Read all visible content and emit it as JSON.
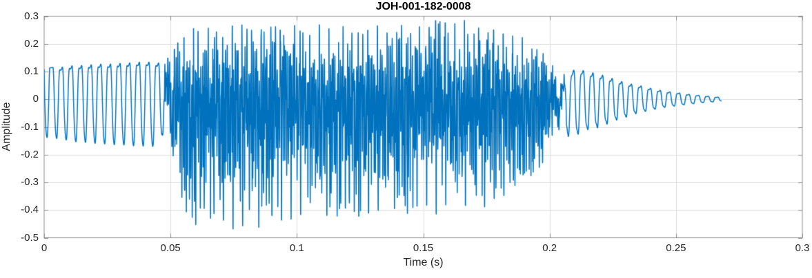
{
  "chart_data": {
    "type": "line",
    "title": "JOH-001-182-0008",
    "xlabel": "Time (s)",
    "ylabel": "Amplitude",
    "xlim": [
      0,
      0.3
    ],
    "ylim": [
      -0.5,
      0.3
    ],
    "xticks": [
      0,
      0.05,
      0.1,
      0.15,
      0.2,
      0.25,
      0.3
    ],
    "xtick_labels": [
      "0",
      "0.05",
      "0.1",
      "0.15",
      "0.2",
      "0.25",
      "0.3"
    ],
    "yticks": [
      -0.5,
      -0.4,
      -0.3,
      -0.2,
      -0.1,
      0,
      0.1,
      0.2,
      0.3
    ],
    "ytick_labels": [
      "-0.5",
      "-0.4",
      "-0.3",
      "-0.2",
      "-0.1",
      "0",
      "0.1",
      "0.2",
      "0.3"
    ],
    "grid": true,
    "line_color": "#0072BD",
    "grid_color": "#dcdcdc",
    "axis_color": "#8c8c8c",
    "label_color": "#262626",
    "signal": {
      "kind": "speech-like waveform, amplitude vs time",
      "duration_s": 0.268,
      "f0_hz": 262,
      "start_phase": 3.0,
      "rich_window": [
        0.046,
        0.057,
        0.194,
        0.208
      ],
      "pos_envelope": [
        [
          0,
          0.11
        ],
        [
          0.01,
          0.12
        ],
        [
          0.02,
          0.125
        ],
        [
          0.03,
          0.13
        ],
        [
          0.04,
          0.133
        ],
        [
          0.046,
          0.132
        ],
        [
          0.05,
          0.15
        ],
        [
          0.053,
          0.2
        ],
        [
          0.058,
          0.25
        ],
        [
          0.063,
          0.27
        ],
        [
          0.07,
          0.23
        ],
        [
          0.075,
          0.26
        ],
        [
          0.08,
          0.27
        ],
        [
          0.085,
          0.25
        ],
        [
          0.09,
          0.285
        ],
        [
          0.095,
          0.25
        ],
        [
          0.1,
          0.27
        ],
        [
          0.105,
          0.24
        ],
        [
          0.11,
          0.28
        ],
        [
          0.115,
          0.25
        ],
        [
          0.12,
          0.26
        ],
        [
          0.125,
          0.24
        ],
        [
          0.13,
          0.27
        ],
        [
          0.135,
          0.25
        ],
        [
          0.14,
          0.26
        ],
        [
          0.145,
          0.24
        ],
        [
          0.15,
          0.26
        ],
        [
          0.155,
          0.27
        ],
        [
          0.16,
          0.28
        ],
        [
          0.165,
          0.285
        ],
        [
          0.17,
          0.26
        ],
        [
          0.175,
          0.25
        ],
        [
          0.18,
          0.25
        ],
        [
          0.185,
          0.24
        ],
        [
          0.19,
          0.235
        ],
        [
          0.195,
          0.2
        ],
        [
          0.2,
          0.15
        ],
        [
          0.205,
          0.115
        ],
        [
          0.21,
          0.11
        ],
        [
          0.215,
          0.1
        ],
        [
          0.22,
          0.09
        ],
        [
          0.225,
          0.075
        ],
        [
          0.23,
          0.06
        ],
        [
          0.235,
          0.05
        ],
        [
          0.24,
          0.04
        ],
        [
          0.245,
          0.03
        ],
        [
          0.25,
          0.024
        ],
        [
          0.255,
          0.018
        ],
        [
          0.26,
          0.013
        ],
        [
          0.264,
          0.01
        ],
        [
          0.268,
          0.006
        ]
      ],
      "neg_envelope": [
        [
          0,
          0.135
        ],
        [
          0.01,
          0.15
        ],
        [
          0.02,
          0.16
        ],
        [
          0.03,
          0.165
        ],
        [
          0.04,
          0.17
        ],
        [
          0.046,
          0.17
        ],
        [
          0.05,
          0.25
        ],
        [
          0.054,
          0.35
        ],
        [
          0.058,
          0.47
        ],
        [
          0.062,
          0.45
        ],
        [
          0.066,
          0.42
        ],
        [
          0.07,
          0.44
        ],
        [
          0.075,
          0.46
        ],
        [
          0.08,
          0.44
        ],
        [
          0.085,
          0.45
        ],
        [
          0.09,
          0.43
        ],
        [
          0.095,
          0.44
        ],
        [
          0.1,
          0.42
        ],
        [
          0.105,
          0.44
        ],
        [
          0.11,
          0.41
        ],
        [
          0.115,
          0.43
        ],
        [
          0.12,
          0.4
        ],
        [
          0.125,
          0.42
        ],
        [
          0.13,
          0.39
        ],
        [
          0.135,
          0.41
        ],
        [
          0.14,
          0.39
        ],
        [
          0.145,
          0.4
        ],
        [
          0.15,
          0.38
        ],
        [
          0.155,
          0.4
        ],
        [
          0.16,
          0.38
        ],
        [
          0.165,
          0.39
        ],
        [
          0.17,
          0.37
        ],
        [
          0.175,
          0.39
        ],
        [
          0.18,
          0.36
        ],
        [
          0.185,
          0.33
        ],
        [
          0.19,
          0.3
        ],
        [
          0.195,
          0.27
        ],
        [
          0.2,
          0.17
        ],
        [
          0.205,
          0.14
        ],
        [
          0.21,
          0.13
        ],
        [
          0.215,
          0.11
        ],
        [
          0.22,
          0.1
        ],
        [
          0.225,
          0.08
        ],
        [
          0.23,
          0.065
        ],
        [
          0.235,
          0.05
        ],
        [
          0.24,
          0.04
        ],
        [
          0.245,
          0.03
        ],
        [
          0.25,
          0.024
        ],
        [
          0.255,
          0.018
        ],
        [
          0.26,
          0.013
        ],
        [
          0.264,
          0.01
        ],
        [
          0.268,
          0.006
        ]
      ]
    }
  }
}
